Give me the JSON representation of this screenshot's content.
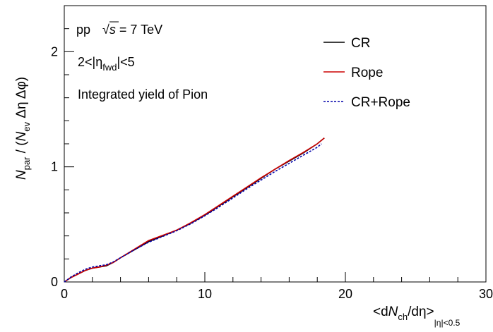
{
  "chart_data": {
    "type": "line",
    "xlim": [
      0,
      30
    ],
    "ylim": [
      0,
      2.4
    ],
    "xticks": [
      0,
      10,
      20,
      30
    ],
    "yticks": [
      0,
      1,
      2
    ],
    "xlabel": {
      "lt": "<d",
      "n": "N",
      "ch": "ch",
      "rest": "/dη>",
      "sub": "|η|<0.5"
    },
    "ylabel": {
      "n": "N",
      "par": "par",
      "slash": " / (",
      "n2": "N",
      "ev": "ev",
      "rest": " Δη Δφ)"
    },
    "annotations": {
      "system": "pp",
      "sqrt_sym": "√",
      "s": "s",
      "energy": " = 7 TeV",
      "eta_cut_left": "2<|η",
      "eta_cut_sub": "fwd",
      "eta_cut_right": "|<5",
      "yield": "Integrated yield of Pion"
    },
    "legend_position": "top-right",
    "series": [
      {
        "name": "CR",
        "color": "#000000",
        "dash": "solid",
        "x": [
          0,
          0.5,
          1,
          1.5,
          2,
          2.5,
          3,
          3.5,
          4,
          5,
          6,
          7,
          8,
          9,
          10,
          11,
          12,
          13,
          14,
          15,
          16,
          17,
          18,
          18.5
        ],
        "y": [
          0,
          0.04,
          0.07,
          0.1,
          0.12,
          0.13,
          0.14,
          0.17,
          0.21,
          0.28,
          0.35,
          0.4,
          0.45,
          0.51,
          0.58,
          0.66,
          0.74,
          0.82,
          0.9,
          0.98,
          1.05,
          1.12,
          1.2,
          1.25
        ]
      },
      {
        "name": "Rope",
        "color": "#cc0000",
        "dash": "solid",
        "x": [
          0,
          0.5,
          1,
          1.5,
          2,
          2.5,
          3,
          3.5,
          4,
          5,
          6,
          7,
          8,
          9,
          10,
          11,
          12,
          13,
          14,
          15,
          16,
          17,
          18,
          18.5
        ],
        "y": [
          0,
          0.04,
          0.07,
          0.1,
          0.12,
          0.13,
          0.145,
          0.17,
          0.21,
          0.285,
          0.36,
          0.405,
          0.45,
          0.515,
          0.585,
          0.665,
          0.745,
          0.825,
          0.905,
          0.98,
          1.055,
          1.125,
          1.2,
          1.25
        ]
      },
      {
        "name": "CR+Rope",
        "color": "#0000aa",
        "dash": "dotted",
        "x": [
          0,
          0.5,
          1,
          1.5,
          2,
          2.5,
          3,
          3.5,
          4,
          5,
          6,
          7,
          8,
          9,
          10,
          11,
          12,
          13,
          14,
          15,
          16,
          17,
          18,
          18.3
        ],
        "y": [
          0,
          0.045,
          0.08,
          0.11,
          0.13,
          0.14,
          0.15,
          0.175,
          0.21,
          0.28,
          0.345,
          0.395,
          0.445,
          0.505,
          0.575,
          0.65,
          0.73,
          0.81,
          0.885,
          0.96,
          1.03,
          1.1,
          1.17,
          1.2
        ]
      }
    ]
  }
}
